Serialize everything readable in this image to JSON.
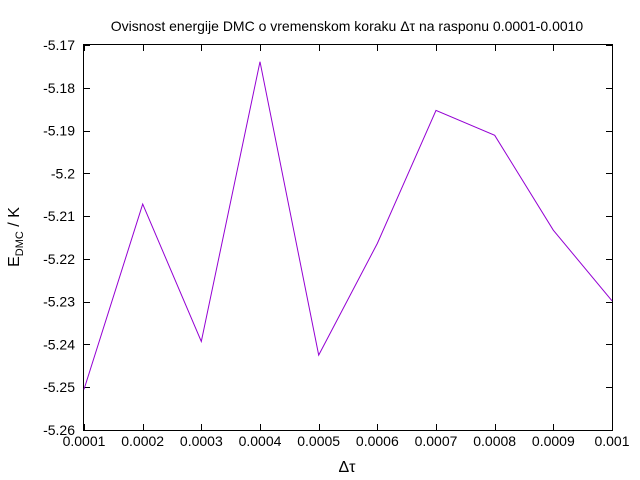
{
  "chart_data": {
    "type": "line",
    "title": "Ovisnost energije DMC o vremenskom koraku Δτ na rasponu 0.0001-0.0010",
    "xlabel": "Δτ",
    "ylabel_main": "E",
    "ylabel_sub": "DMC",
    "ylabel_unit": " / K",
    "xlim": [
      0.0001,
      0.001
    ],
    "ylim": [
      -5.26,
      -5.17
    ],
    "grid": false,
    "xticks": [
      "0.0001",
      "0.0002",
      "0.0003",
      "0.0004",
      "0.0005",
      "0.0006",
      "0.0007",
      "0.0008",
      "0.0009",
      "0.001"
    ],
    "yticks": [
      "-5.17",
      "-5.18",
      "-5.19",
      "-5.2",
      "-5.21",
      "-5.22",
      "-5.23",
      "-5.24",
      "-5.25",
      "-5.26"
    ],
    "x": [
      0.0001,
      0.0002,
      0.0003,
      0.0004,
      0.0005,
      0.0006,
      0.0007,
      0.0008,
      0.0009,
      0.001
    ],
    "series": [
      {
        "color": "#9400d3",
        "values": [
          -5.2505,
          -5.2072,
          -5.2393,
          -5.1739,
          -5.2425,
          -5.2164,
          -5.1853,
          -5.1911,
          -5.2133,
          -5.2298
        ]
      }
    ]
  }
}
